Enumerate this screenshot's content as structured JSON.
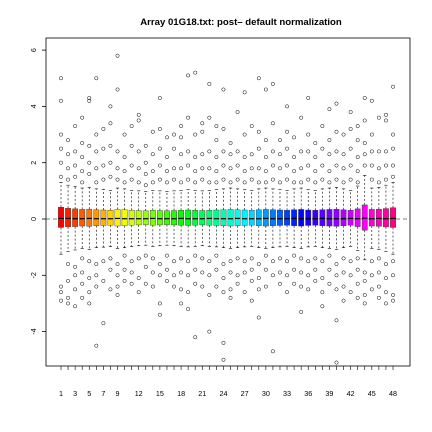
{
  "chart_data": {
    "type": "boxplot",
    "title": "Array 01G18.txt: post– default normalization",
    "xlabel": "",
    "ylabel": "",
    "categories": [
      "1",
      "2",
      "3",
      "4",
      "5",
      "6",
      "7",
      "8",
      "9",
      "10",
      "11",
      "12",
      "13",
      "14",
      "15",
      "16",
      "17",
      "18",
      "19",
      "20",
      "21",
      "22",
      "23",
      "24",
      "25",
      "26",
      "27",
      "28",
      "29",
      "30",
      "31",
      "32",
      "33",
      "34",
      "35",
      "36",
      "37",
      "38",
      "39",
      "40",
      "41",
      "42",
      "43",
      "44",
      "45",
      "46",
      "47",
      "48"
    ],
    "x_tick_labels": [
      "1",
      "3",
      "5",
      "7",
      "9",
      "12",
      "15",
      "18",
      "21",
      "24",
      "27",
      "30",
      "33",
      "36",
      "39",
      "42",
      "45",
      "48"
    ],
    "y_ticks": [
      -4,
      -2,
      0,
      2,
      4,
      6
    ],
    "ylim": [
      -5.4,
      6.2
    ],
    "reference_line_y": 0,
    "box_stats": {
      "q1": [
        -0.3,
        -0.28,
        -0.27,
        -0.25,
        -0.26,
        -0.24,
        -0.23,
        -0.22,
        -0.25,
        -0.24,
        -0.22,
        -0.21,
        -0.2,
        -0.22,
        -0.21,
        -0.2,
        -0.21,
        -0.22,
        -0.23,
        -0.22,
        -0.21,
        -0.22,
        -0.23,
        -0.24,
        -0.25,
        -0.24,
        -0.23,
        -0.22,
        -0.24,
        -0.25,
        -0.24,
        -0.23,
        -0.22,
        -0.24,
        -0.25,
        -0.23,
        -0.22,
        -0.24,
        -0.25,
        -0.26,
        -0.24,
        -0.22,
        -0.27,
        -0.4,
        -0.25,
        -0.26,
        -0.28,
        -0.3
      ],
      "median": [
        0.02,
        0.02,
        0.01,
        0.01,
        0.02,
        0.01,
        0.01,
        0.01,
        0.02,
        0.01,
        0.01,
        0.01,
        0.01,
        0.02,
        0.01,
        0.01,
        0.01,
        0.02,
        0.01,
        0.01,
        0.01,
        0.02,
        0.01,
        0.01,
        0.01,
        0.02,
        0.01,
        0.01,
        0.01,
        0.02,
        0.01,
        0.01,
        0.01,
        0.02,
        0.01,
        0.01,
        0.01,
        0.02,
        0.01,
        0.01,
        0.01,
        0.02,
        0.01,
        0.03,
        0.01,
        0.02,
        0.01,
        0.02
      ],
      "q3": [
        0.42,
        0.38,
        0.36,
        0.34,
        0.35,
        0.33,
        0.32,
        0.31,
        0.34,
        0.33,
        0.31,
        0.3,
        0.29,
        0.31,
        0.3,
        0.29,
        0.3,
        0.31,
        0.32,
        0.31,
        0.3,
        0.31,
        0.32,
        0.33,
        0.34,
        0.33,
        0.32,
        0.31,
        0.33,
        0.34,
        0.33,
        0.32,
        0.31,
        0.33,
        0.34,
        0.32,
        0.31,
        0.33,
        0.34,
        0.35,
        0.33,
        0.31,
        0.36,
        0.5,
        0.34,
        0.35,
        0.37,
        0.4
      ],
      "whisker_low": [
        -1.25,
        -1.15,
        -1.1,
        -1.05,
        -1.08,
        -1.02,
        -1.0,
        -0.98,
        -1.05,
        -1.02,
        -0.98,
        -0.95,
        -0.93,
        -0.97,
        -0.95,
        -0.93,
        -0.95,
        -0.97,
        -0.99,
        -0.97,
        -0.95,
        -0.97,
        -0.99,
        -1.02,
        -1.05,
        -1.02,
        -0.99,
        -0.97,
        -1.02,
        -1.05,
        -1.02,
        -0.99,
        -0.97,
        -1.02,
        -1.05,
        -0.99,
        -0.97,
        -1.02,
        -1.05,
        -1.08,
        -1.02,
        -0.97,
        -1.12,
        -1.45,
        -1.05,
        -1.08,
        -1.15,
        -1.25
      ],
      "whisker_high": [
        1.3,
        1.2,
        1.15,
        1.1,
        1.12,
        1.07,
        1.05,
        1.02,
        1.1,
        1.07,
        1.02,
        1.0,
        0.98,
        1.02,
        1.0,
        0.98,
        1.0,
        1.02,
        1.04,
        1.02,
        1.0,
        1.02,
        1.04,
        1.07,
        1.1,
        1.07,
        1.04,
        1.02,
        1.07,
        1.1,
        1.07,
        1.04,
        1.02,
        1.07,
        1.1,
        1.04,
        1.02,
        1.07,
        1.1,
        1.12,
        1.07,
        1.02,
        1.17,
        1.55,
        1.1,
        1.12,
        1.2,
        1.3
      ]
    },
    "outliers": [
      [
        -2.4,
        -2.6,
        -2.9,
        1.5,
        2.0,
        2.5,
        3.0,
        4.2,
        5.0
      ],
      [
        -1.6,
        -2.2,
        -2.8,
        -3.0,
        1.4,
        1.8,
        2.3,
        2.8
      ],
      [
        -1.7,
        -2.0,
        -2.5,
        -3.1,
        1.5,
        1.9,
        2.4,
        3.3
      ],
      [
        -1.4,
        -1.9,
        -2.3,
        -2.8,
        1.3,
        1.7,
        2.2,
        2.7,
        3.6
      ],
      [
        -1.5,
        -2.1,
        -2.6,
        -3.0,
        1.6,
        2.0,
        2.6,
        4.2,
        4.3
      ],
      [
        -1.6,
        -2.0,
        -2.4,
        -4.5,
        1.3,
        1.8,
        2.4,
        3.0,
        5.0
      ],
      [
        -1.5,
        -2.2,
        -3.7,
        1.4,
        1.9,
        2.5,
        3.2
      ],
      [
        -1.4,
        -1.8,
        -2.5,
        1.5,
        2.0,
        2.6,
        3.4,
        4.0
      ],
      [
        -1.6,
        -2.0,
        -2.4,
        -2.7,
        1.4,
        1.8,
        2.4,
        4.6,
        5.8
      ],
      [
        -1.3,
        -1.8,
        -2.2,
        1.3,
        1.7,
        2.2,
        3.0
      ],
      [
        -1.5,
        -1.9,
        -2.3,
        1.4,
        1.9,
        2.6,
        3.3
      ],
      [
        -1.4,
        -2.1,
        -2.6,
        1.3,
        1.8,
        2.4,
        3.5,
        3.7
      ],
      [
        -1.3,
        -1.7,
        -2.3,
        1.2,
        1.6,
        2.0,
        2.6
      ],
      [
        -1.4,
        -1.9,
        -2.4,
        1.3,
        1.7,
        2.3,
        3.1
      ],
      [
        -1.6,
        -2.0,
        -3.0,
        -3.4,
        1.4,
        1.9,
        2.5,
        3.2,
        4.3
      ],
      [
        -1.3,
        -1.8,
        -2.2,
        1.3,
        1.7,
        2.2,
        2.9
      ],
      [
        -1.5,
        -2.0,
        -2.4,
        1.4,
        1.8,
        2.5,
        3.0
      ],
      [
        -1.4,
        -1.9,
        -2.5,
        -3.0,
        1.3,
        1.8,
        2.3,
        2.9,
        3.3
      ],
      [
        -1.5,
        -2.0,
        -2.6,
        -3.2,
        1.4,
        1.9,
        2.4,
        3.6,
        5.1
      ],
      [
        -1.3,
        -1.8,
        -2.3,
        -4.2,
        1.3,
        1.7,
        2.2,
        3.0,
        5.2
      ],
      [
        -1.4,
        -1.9,
        -2.4,
        1.4,
        1.8,
        2.3,
        3.1,
        3.4
      ],
      [
        -1.5,
        -2.0,
        -2.7,
        -4.0,
        1.3,
        1.8,
        2.4,
        3.6,
        4.8
      ],
      [
        -1.3,
        -1.8,
        -2.4,
        1.3,
        1.7,
        2.2,
        2.8,
        3.3
      ],
      [
        -1.6,
        -2.1,
        -2.6,
        -5.0,
        -4.4,
        1.4,
        1.9,
        2.4,
        3.2,
        4.6
      ],
      [
        -1.5,
        -1.9,
        -2.5,
        -2.8,
        1.3,
        1.8,
        2.3,
        2.7
      ],
      [
        -1.4,
        -2.0,
        -2.3,
        1.4,
        1.9,
        2.4,
        3.8
      ],
      [
        -1.5,
        -1.9,
        -2.6,
        1.3,
        1.7,
        2.2,
        3.0,
        4.5
      ],
      [
        -1.4,
        -1.8,
        -2.2,
        -2.9,
        1.4,
        1.8,
        2.3,
        3.3
      ],
      [
        -1.6,
        -2.1,
        -2.5,
        -3.5,
        1.3,
        1.8,
        2.5,
        3.1,
        5.0
      ],
      [
        -1.3,
        -1.8,
        -2.4,
        1.3,
        1.7,
        2.2,
        2.8,
        4.6
      ],
      [
        -1.5,
        -2.0,
        -4.7,
        1.4,
        1.9,
        2.4,
        3.4,
        4.8
      ],
      [
        -1.4,
        -1.9,
        -2.3,
        1.3,
        1.8,
        2.3,
        2.8
      ],
      [
        -1.5,
        -2.0,
        -2.6,
        1.4,
        1.9,
        2.5,
        3.1,
        4.0
      ],
      [
        -1.3,
        -1.8,
        -2.3,
        1.3,
        1.7,
        2.2,
        2.9
      ],
      [
        -1.4,
        -1.9,
        -2.4,
        -3.3,
        1.3,
        1.8,
        2.4,
        3.6
      ],
      [
        -1.5,
        -2.0,
        -2.5,
        1.4,
        1.9,
        2.4,
        3.0,
        4.3
      ],
      [
        -1.4,
        -1.8,
        -2.2,
        1.3,
        1.7,
        2.2,
        2.7
      ],
      [
        -1.5,
        -2.1,
        -2.6,
        -3.1,
        1.4,
        1.9,
        2.5,
        3.3
      ],
      [
        -1.3,
        -1.8,
        -2.3,
        1.3,
        1.7,
        2.3,
        2.8,
        3.9
      ],
      [
        -1.6,
        -2.0,
        -2.5,
        -3.6,
        -5.1,
        1.4,
        1.9,
        2.4,
        3.1,
        4.1
      ],
      [
        -1.4,
        -1.9,
        -2.4,
        -2.9,
        1.3,
        1.8,
        2.3,
        3.0
      ],
      [
        -1.5,
        -2.0,
        -2.6,
        1.4,
        1.9,
        2.5,
        3.2,
        3.8
      ],
      [
        -1.4,
        -1.8,
        -2.3,
        -2.8,
        1.3,
        1.7,
        2.2,
        2.8,
        3.3
      ],
      [
        -1.9,
        -2.2,
        -2.7,
        -3.0,
        1.9,
        2.3,
        2.7,
        3.5,
        4.3
      ],
      [
        -1.5,
        -2.0,
        -2.5,
        1.4,
        1.9,
        2.4,
        3.0,
        4.2
      ],
      [
        -1.4,
        -1.9,
        -2.4,
        -2.8,
        1.3,
        1.8,
        2.4,
        3.6
      ],
      [
        -1.6,
        -2.1,
        -2.6,
        -3.0,
        1.4,
        1.9,
        2.4,
        3.5,
        3.7
      ],
      [
        -1.5,
        -2.0,
        -2.7,
        -2.9,
        1.5,
        1.9,
        2.5,
        3.0,
        4.7
      ]
    ]
  }
}
